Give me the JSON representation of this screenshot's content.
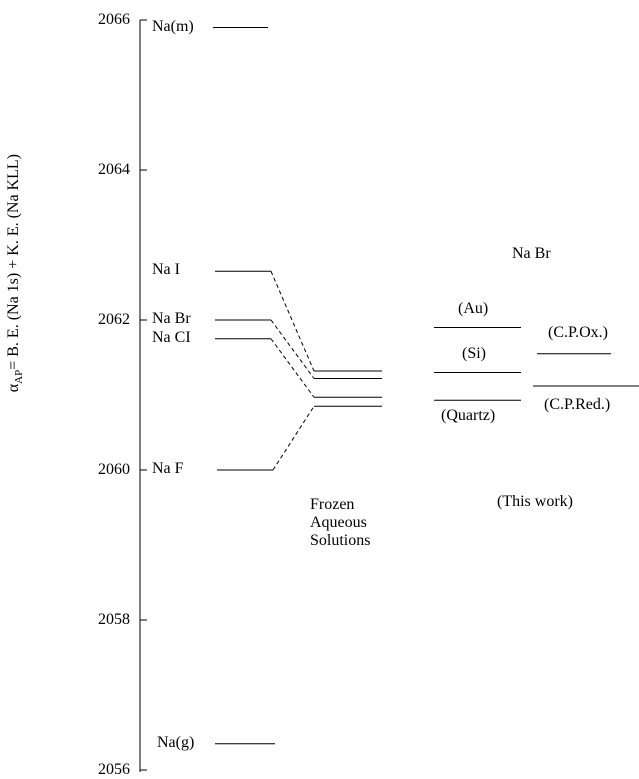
{
  "y_axis": {
    "label": "α_AP= B. E. (Na 1s) + K. E. (Na KLL)",
    "label_main": "α",
    "label_sub": "AP",
    "label_rest": "= B. E. (Na 1s) + K. E. (Na KLL)",
    "range": [
      2056,
      2066
    ],
    "ticks": [
      "2056",
      "2058",
      "2060",
      "2062",
      "2064",
      "2066"
    ]
  },
  "salts": [
    {
      "label": "Na(m)",
      "value": 2065.9
    },
    {
      "label": "Na I",
      "value": 2062.65
    },
    {
      "label": "Na Br",
      "value": 2062.0
    },
    {
      "label": "Na CI",
      "value": 2061.75
    },
    {
      "label": "Na F",
      "value": 2060.0
    },
    {
      "label": "Na(g)",
      "value": 2056.35
    }
  ],
  "frozen": {
    "label_lines": [
      "Frozen",
      "Aqueous",
      "Solutions"
    ],
    "levels": [
      2061.32,
      2061.22,
      2060.97,
      2060.85
    ]
  },
  "this_work": {
    "title": "Na Br",
    "caption": "(This work)",
    "substrates": [
      {
        "label": "(Au)",
        "value": 2061.9
      },
      {
        "label": "(Si)",
        "value": 2061.3
      },
      {
        "label": "(Quartz)",
        "value": 2060.93
      }
    ],
    "cp": [
      {
        "label": "(C.P.Ox.)",
        "value": 2061.55
      },
      {
        "label": "(C.P.Red.)",
        "value": 2061.12
      }
    ]
  }
}
